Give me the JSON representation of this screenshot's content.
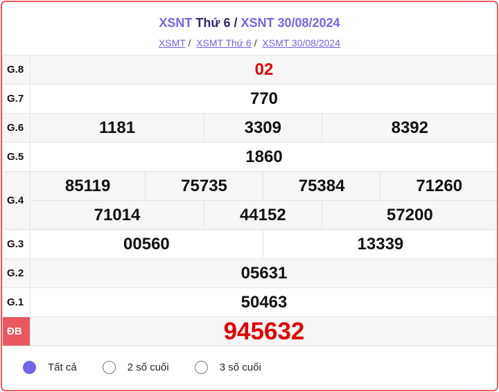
{
  "title": {
    "part1": "XSNT",
    "part2": " Thứ 6 / ",
    "part3": "XSNT 30/08/2024"
  },
  "breadcrumb": [
    "XSMT",
    "XSMT Thứ 6",
    "XSMT 30/08/2024"
  ],
  "prizes": {
    "g8": {
      "label": "G.8",
      "values": [
        "02"
      ]
    },
    "g7": {
      "label": "G.7",
      "values": [
        "770"
      ]
    },
    "g6": {
      "label": "G.6",
      "values": [
        "1181",
        "3309",
        "8392"
      ]
    },
    "g5": {
      "label": "G.5",
      "values": [
        "1860"
      ]
    },
    "g4": {
      "label": "G.4",
      "values": [
        "85119",
        "75735",
        "75384",
        "71260",
        "71014",
        "44152",
        "57200"
      ]
    },
    "g3": {
      "label": "G.3",
      "values": [
        "00560",
        "13339"
      ]
    },
    "g2": {
      "label": "G.2",
      "values": [
        "05631"
      ]
    },
    "g1": {
      "label": "G.1",
      "values": [
        "50463"
      ]
    },
    "db": {
      "label": "ĐB",
      "values": [
        "945632"
      ]
    }
  },
  "filters": [
    {
      "label": "Tất cả",
      "selected": true
    },
    {
      "label": "2 số cuối",
      "selected": false
    },
    {
      "label": "3 số cuối",
      "selected": false
    }
  ],
  "colors": {
    "accent": "#7466ec",
    "border": "#e85a5a",
    "special": "#e10000"
  }
}
